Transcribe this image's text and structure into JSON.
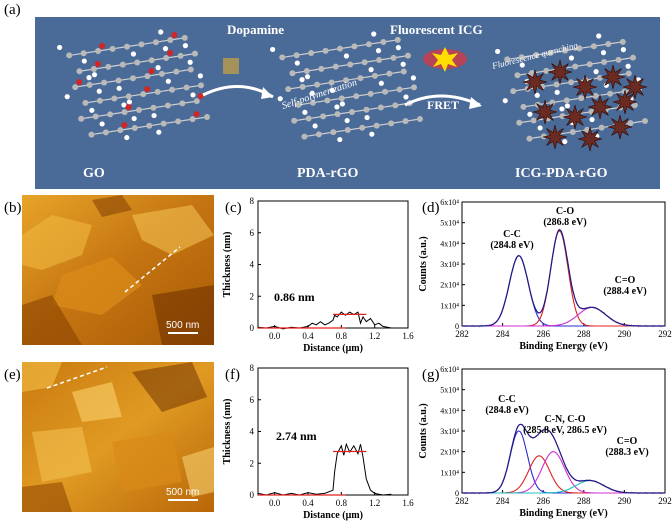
{
  "panels": {
    "a": "(a)",
    "b": "(b)",
    "c": "(c)",
    "d": "(d)",
    "e": "(e)",
    "f": "(f)",
    "g": "(g)"
  },
  "scheme": {
    "step1_label": "Dopamine",
    "step1_arrow_note": "Self-polymerization",
    "step2_label": "Fluorescent ICG",
    "step2_arrow_label": "FRET",
    "quench_note": "Fluorescence quenching",
    "names": [
      "GO",
      "PDA-rGO",
      "ICG-PDA-rGO"
    ],
    "colors": {
      "banner": "#4a6a98",
      "carbon": "#b9b9b9",
      "hydrogen": "#ffffff",
      "oxygen": "#d42525",
      "icg": "#6b2a22"
    }
  },
  "afm": {
    "b_scale": "500 nm",
    "e_scale": "500 nm",
    "colors": {
      "dark": "#6a2e00",
      "mid": "#c9780a",
      "light": "#f0b840"
    }
  },
  "chart_data": [
    {
      "panel": "c",
      "type": "line",
      "xlabel": "Distance (μm)",
      "ylabel": "Thickness (nm)",
      "xlim": [
        -0.2,
        1.6
      ],
      "ylim": [
        0,
        8
      ],
      "xticks": [
        "0.0",
        "0.4",
        "0.8",
        "1.2",
        "1.6"
      ],
      "yticks": [
        "0",
        "2",
        "4",
        "6",
        "8"
      ],
      "annotation": "0.86 nm",
      "levels": [
        0.0,
        0.86
      ],
      "x": [
        -0.2,
        -0.1,
        0.0,
        0.1,
        0.2,
        0.3,
        0.4,
        0.45,
        0.5,
        0.55,
        0.6,
        0.65,
        0.7,
        0.72,
        0.75,
        0.8,
        0.85,
        0.9,
        0.95,
        1.0,
        1.03,
        1.06,
        1.1,
        1.15,
        1.2,
        1.25,
        1.3,
        1.4
      ],
      "y": [
        0.05,
        0.0,
        0.1,
        -0.05,
        0.05,
        0.0,
        0.1,
        0.3,
        0.2,
        0.4,
        0.2,
        0.3,
        0.5,
        0.8,
        0.7,
        1.0,
        0.8,
        1.0,
        0.85,
        1.0,
        0.3,
        0.7,
        0.4,
        0.6,
        0.2,
        0.3,
        0.1,
        0.0
      ]
    },
    {
      "panel": "d",
      "type": "line",
      "xlabel": "Binding Energy (eV)",
      "ylabel": "Counts (a.u.)",
      "xlim": [
        282,
        292
      ],
      "ylim": [
        0,
        60000
      ],
      "xticks": [
        "282",
        "284",
        "286",
        "288",
        "290",
        "292"
      ],
      "yticks": [
        "0",
        "1x10⁴",
        "2x10⁴",
        "3x10⁴",
        "4x10⁴",
        "5x10⁴",
        "6x10⁴"
      ],
      "peak_labels": [
        {
          "name": "C-C",
          "value": "(284.8 eV)"
        },
        {
          "name": "C-O",
          "value": "(286.8 eV)"
        },
        {
          "name": "C=O",
          "value": "(288.4 eV)"
        }
      ],
      "series": [
        {
          "center": 284.8,
          "height": 34000,
          "fwhm": 1.1,
          "color": "#2b2bd9"
        },
        {
          "center": 286.8,
          "height": 46000,
          "fwhm": 1.0,
          "color": "#e02020"
        },
        {
          "center": 288.4,
          "height": 9000,
          "fwhm": 1.6,
          "color": "#d030d0"
        }
      ],
      "envelope_color": "#1a1a8a",
      "raw_color": "#e06b8a"
    },
    {
      "panel": "f",
      "type": "line",
      "xlabel": "Distance (μm)",
      "ylabel": "Thickness (nm)",
      "xlim": [
        -0.2,
        1.6
      ],
      "ylim": [
        0,
        8
      ],
      "xticks": [
        "0.0",
        "0.4",
        "0.8",
        "1.2",
        "1.6"
      ],
      "yticks": [
        "0",
        "2",
        "4",
        "6",
        "8"
      ],
      "annotation": "2.74 nm",
      "levels": [
        0.0,
        2.74
      ],
      "x": [
        -0.2,
        -0.1,
        0.0,
        0.1,
        0.2,
        0.3,
        0.4,
        0.5,
        0.6,
        0.7,
        0.72,
        0.75,
        0.8,
        0.83,
        0.86,
        0.9,
        0.95,
        1.0,
        1.03,
        1.06,
        1.1,
        1.15,
        1.2,
        1.25,
        1.3,
        1.4
      ],
      "y": [
        0.1,
        0.0,
        0.15,
        0.0,
        0.1,
        0.0,
        0.15,
        0.05,
        0.1,
        0.3,
        1.5,
        2.6,
        3.1,
        2.5,
        3.2,
        2.7,
        3.1,
        2.6,
        3.2,
        2.4,
        1.0,
        0.3,
        0.1,
        0.05,
        0.0,
        0.05
      ]
    },
    {
      "panel": "g",
      "type": "line",
      "xlabel": "Binding Energy (eV)",
      "ylabel": "Counts (a.u.)",
      "xlim": [
        282,
        292
      ],
      "ylim": [
        0,
        60000
      ],
      "xticks": [
        "282",
        "284",
        "286",
        "288",
        "290",
        "292"
      ],
      "yticks": [
        "0",
        "1x10⁴",
        "2x10⁴",
        "3x10⁴",
        "4x10⁴",
        "5x10⁴",
        "6x10⁴"
      ],
      "peak_labels": [
        {
          "name": "C-C",
          "value": "(284.8 eV)"
        },
        {
          "name": "C-N, C-O",
          "value": "(285.8 eV, 286.5 eV)"
        },
        {
          "name": "C=O",
          "value": "(288.3 eV)"
        }
      ],
      "series": [
        {
          "center": 284.8,
          "height": 30000,
          "fwhm": 1.0,
          "color": "#2b2bd9"
        },
        {
          "center": 285.8,
          "height": 18000,
          "fwhm": 1.2,
          "color": "#e02020"
        },
        {
          "center": 286.5,
          "height": 20000,
          "fwhm": 1.3,
          "color": "#d030d0"
        },
        {
          "center": 288.3,
          "height": 6000,
          "fwhm": 1.6,
          "color": "#20c0c0"
        }
      ],
      "envelope_color": "#1a1a8a",
      "raw_color": "#e06b8a"
    }
  ]
}
